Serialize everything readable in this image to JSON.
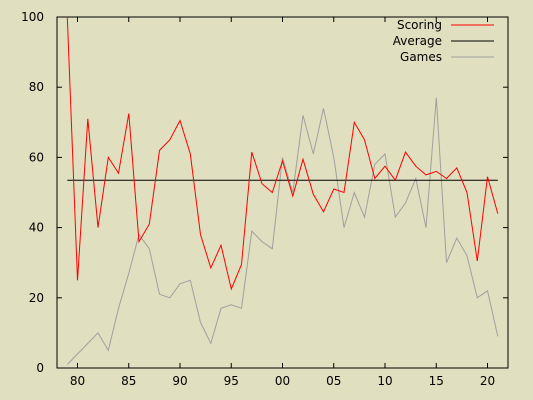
{
  "chart_data": {
    "type": "line",
    "x_tick_labels": [
      "80",
      "85",
      "90",
      "95",
      "00",
      "05",
      "10",
      "15",
      "20"
    ],
    "x_tick_values": [
      1980,
      1985,
      1990,
      1995,
      2000,
      2005,
      2010,
      2015,
      2020
    ],
    "y_tick_labels": [
      "0",
      "20",
      "40",
      "60",
      "80",
      "100"
    ],
    "y_tick_values": [
      0,
      20,
      40,
      60,
      80,
      100
    ],
    "xlim": [
      1978,
      2022
    ],
    "ylim": [
      0,
      100
    ],
    "grid": false,
    "legend_position": "top-right",
    "x": [
      1979,
      1980,
      1981,
      1982,
      1983,
      1984,
      1985,
      1986,
      1987,
      1988,
      1989,
      1990,
      1991,
      1992,
      1993,
      1994,
      1995,
      1996,
      1997,
      1998,
      1999,
      2000,
      2001,
      2002,
      2003,
      2004,
      2005,
      2006,
      2007,
      2008,
      2009,
      2010,
      2011,
      2012,
      2013,
      2014,
      2015,
      2016,
      2017,
      2018,
      2019,
      2020,
      2021
    ],
    "series": [
      {
        "name": "Scoring",
        "color": "#ff0000",
        "values": [
          100,
          25,
          71,
          40,
          60,
          55.5,
          72.5,
          36,
          41,
          62,
          65,
          70.5,
          61,
          38,
          28.5,
          35,
          22.5,
          29.5,
          61.5,
          52.5,
          50,
          59,
          49,
          59.5,
          49.5,
          44.5,
          51,
          50,
          70,
          65,
          54,
          57.5,
          53.5,
          61.5,
          57.5,
          55,
          56,
          54,
          57,
          50,
          30.5,
          54.5,
          44
        ]
      },
      {
        "name": "Average",
        "color": "#000000",
        "values": [
          53.5,
          53.5,
          53.5,
          53.5,
          53.5,
          53.5,
          53.5,
          53.5,
          53.5,
          53.5,
          53.5,
          53.5,
          53.5,
          53.5,
          53.5,
          53.5,
          53.5,
          53.5,
          53.5,
          53.5,
          53.5,
          53.5,
          53.5,
          53.5,
          53.5,
          53.5,
          53.5,
          53.5,
          53.5,
          53.5,
          53.5,
          53.5,
          53.5,
          53.5,
          53.5,
          53.5,
          53.5,
          53.5,
          53.5,
          53.5,
          53.5,
          53.5,
          53.5
        ]
      },
      {
        "name": "Games",
        "color": "#a0a0a0",
        "values": [
          1,
          4,
          7,
          10,
          5,
          17,
          27,
          38,
          34,
          21,
          20,
          24,
          25,
          13,
          7,
          17,
          18,
          17,
          39,
          36,
          34,
          60,
          50,
          72,
          61,
          74,
          60,
          40,
          50,
          43,
          58,
          61,
          43,
          47,
          54,
          40,
          77,
          30,
          37,
          32,
          20,
          22,
          9
        ]
      }
    ]
  }
}
